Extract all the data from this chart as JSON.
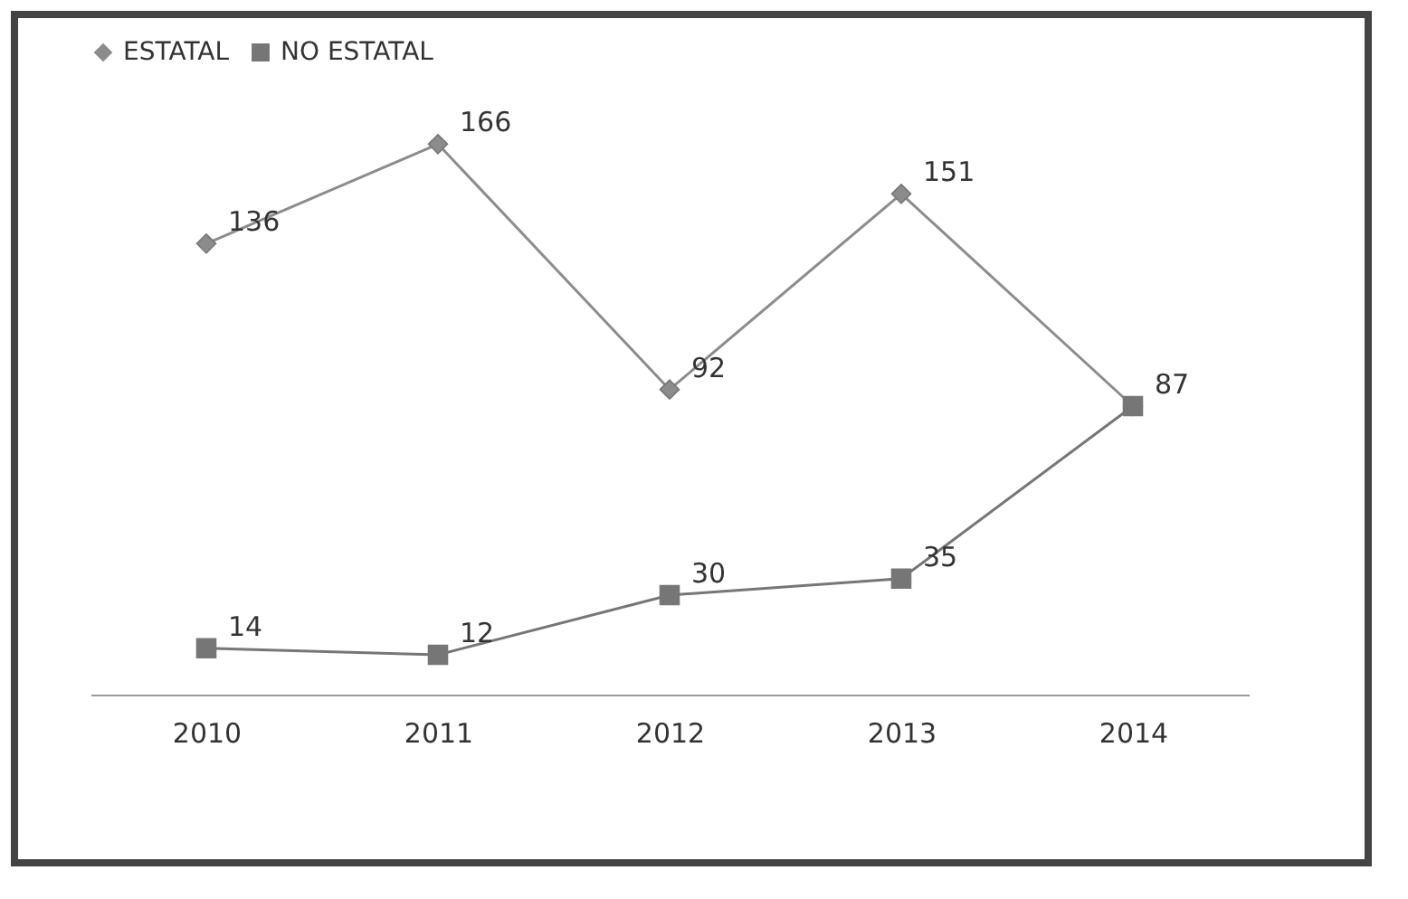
{
  "chart_data": {
    "type": "line",
    "categories": [
      "2010",
      "2011",
      "2012",
      "2013",
      "2014"
    ],
    "series": [
      {
        "name": "ESTATAL",
        "color": "#8c8c8c",
        "marker": "diamond",
        "values": [
          136,
          166,
          92,
          151,
          87
        ],
        "value_labels": [
          "136",
          "166",
          "92",
          "151",
          null
        ]
      },
      {
        "name": "NO ESTATAL",
        "color": "#767676",
        "marker": "square",
        "values": [
          14,
          12,
          30,
          35,
          87
        ],
        "value_labels": [
          "14",
          "12",
          "30",
          "35",
          "87"
        ]
      }
    ],
    "tick_labels": "x",
    "legend": "top"
  }
}
